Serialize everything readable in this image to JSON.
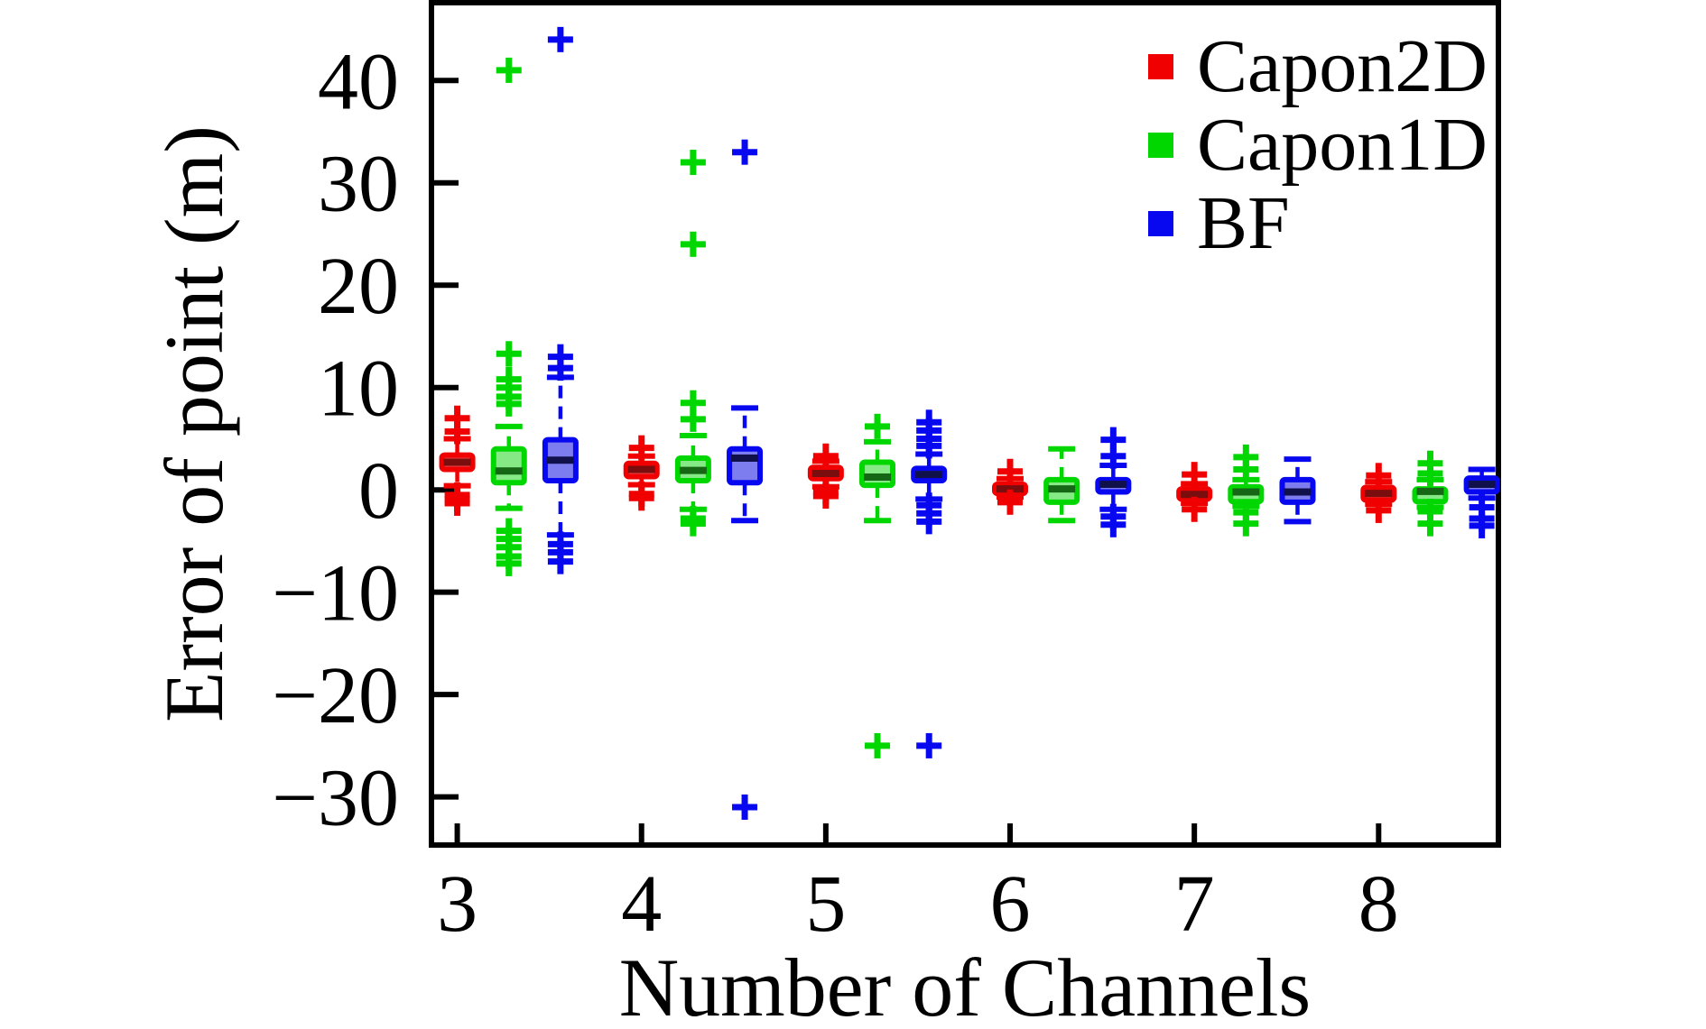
{
  "figure": {
    "background": "#ffffff"
  },
  "chart_data": {
    "type": "boxplot",
    "title": "",
    "xlabel": "Number of Channels",
    "ylabel": "Error of point (m)",
    "x_tick_labels": [
      3,
      4,
      5,
      6,
      7,
      8
    ],
    "y_tick_labels": [
      40,
      30,
      20,
      10,
      0,
      -10,
      -20,
      -30
    ],
    "xlim": [
      2.86,
      8.65
    ],
    "ylim": [
      -34.7,
      47.6
    ],
    "grid": false,
    "legend_position": "top-right-inside",
    "axis_color": "#000000",
    "series": [
      {
        "name": "Capon2D",
        "offset": 0.0,
        "color": "#f00000",
        "fill": "#ee4747",
        "median_color": "#7a0e0e",
        "boxes": [
          {
            "x": 3,
            "whislo": 0.4,
            "q1": 2.0,
            "med": 2.7,
            "q3": 3.4,
            "whishi": 5.0,
            "fliers": [
              5.7,
              7.0,
              -0.5,
              -0.9,
              -1.3
            ]
          },
          {
            "x": 4,
            "whislo": 0.5,
            "q1": 1.3,
            "med": 2.0,
            "q3": 2.6,
            "whishi": 3.3,
            "fliers": [
              4.1,
              -0.4,
              -0.8
            ]
          },
          {
            "x": 5,
            "whislo": 0.3,
            "q1": 1.1,
            "med": 1.6,
            "q3": 2.2,
            "whishi": 2.8,
            "fliers": [
              3.3,
              -0.2,
              -0.6
            ]
          },
          {
            "x": 6,
            "whislo": -0.7,
            "q1": -0.35,
            "med": 0.1,
            "q3": 0.55,
            "whishi": 1.1,
            "fliers": [
              1.8,
              -1.2
            ]
          },
          {
            "x": 7,
            "whislo": -1.3,
            "q1": -0.9,
            "med": -0.45,
            "q3": 0.1,
            "whishi": 0.6,
            "fliers": [
              1.5,
              -1.9
            ]
          },
          {
            "x": 8,
            "whislo": -1.4,
            "q1": -1.0,
            "med": -0.35,
            "q3": 0.25,
            "whishi": 0.8,
            "fliers": [
              1.4,
              -2.0
            ]
          }
        ]
      },
      {
        "name": "Capon1D",
        "offset": 0.28,
        "color": "#00d600",
        "fill": "#85e985",
        "median_color": "#156615",
        "boxes": [
          {
            "x": 3,
            "whislo": -1.8,
            "q1": 0.7,
            "med": 1.85,
            "q3": 4.0,
            "whishi": 6.2,
            "fliers": [
              8.4,
              9.1,
              10.0,
              10.8,
              13.3,
              41,
              -4.0,
              -4.8,
              -5.6,
              -6.5,
              -7.2
            ]
          },
          {
            "x": 4,
            "whislo": -1.9,
            "q1": 0.9,
            "med": 1.9,
            "q3": 3.1,
            "whishi": 5.3,
            "fliers": [
              6.9,
              8.5,
              24,
              32,
              -2.8,
              -3.3
            ]
          },
          {
            "x": 5,
            "whislo": -3.0,
            "q1": 0.45,
            "med": 1.25,
            "q3": 2.7,
            "whishi": 4.7,
            "fliers": [
              6.2,
              -25
            ]
          },
          {
            "x": 6,
            "whislo": -3.0,
            "q1": -1.2,
            "med": 0.1,
            "q3": 1.0,
            "whishi": 4.0,
            "fliers": []
          },
          {
            "x": 7,
            "whislo": -1.6,
            "q1": -1.15,
            "med": -0.2,
            "q3": 0.3,
            "whishi": 1.0,
            "fliers": [
              2.0,
              3.2,
              -2.2,
              -3.3
            ]
          },
          {
            "x": 8,
            "whislo": -1.7,
            "q1": -1.15,
            "med": -0.15,
            "q3": 0.1,
            "whishi": 1.0,
            "fliers": [
              1.6,
              2.6,
              -2.1,
              -3.3
            ]
          }
        ]
      },
      {
        "name": "BF",
        "offset": 0.56,
        "color": "#0808f0",
        "fill": "#7d7df0",
        "median_color": "#10104a",
        "boxes": [
          {
            "x": 3,
            "whislo": -4.4,
            "q1": 0.9,
            "med": 2.9,
            "q3": 4.9,
            "whishi": 11.0,
            "fliers": [
              11.9,
              13.0,
              44,
              -5.3,
              -6.1,
              -7.0
            ]
          },
          {
            "x": 4,
            "whislo": -3.0,
            "q1": 0.7,
            "med": 3.1,
            "q3": 4.0,
            "whishi": 8.0,
            "fliers": [
              33,
              -31
            ]
          },
          {
            "x": 5,
            "whislo": -0.9,
            "q1": 0.9,
            "med": 1.5,
            "q3": 2.1,
            "whishi": 3.5,
            "fliers": [
              4.3,
              5.0,
              5.8,
              6.6,
              -1.5,
              -2.3,
              -3.1,
              -25
            ]
          },
          {
            "x": 6,
            "whislo": -1.9,
            "q1": -0.2,
            "med": 0.55,
            "q3": 1.0,
            "whishi": 2.4,
            "fliers": [
              3.3,
              4.9,
              -2.6,
              -3.4
            ]
          },
          {
            "x": 7,
            "whislo": -3.1,
            "q1": -1.2,
            "med": -0.2,
            "q3": 1.0,
            "whishi": 3.0,
            "fliers": []
          },
          {
            "x": 8,
            "whislo": -0.8,
            "q1": -0.2,
            "med": 0.55,
            "q3": 1.15,
            "whishi": 2.0,
            "fliers": [
              -1.7,
              -2.8,
              -3.5
            ]
          }
        ]
      }
    ],
    "legend": {
      "entries": [
        {
          "label": "Capon2D"
        },
        {
          "label": "Capon1D"
        },
        {
          "label": "BF"
        }
      ]
    }
  }
}
